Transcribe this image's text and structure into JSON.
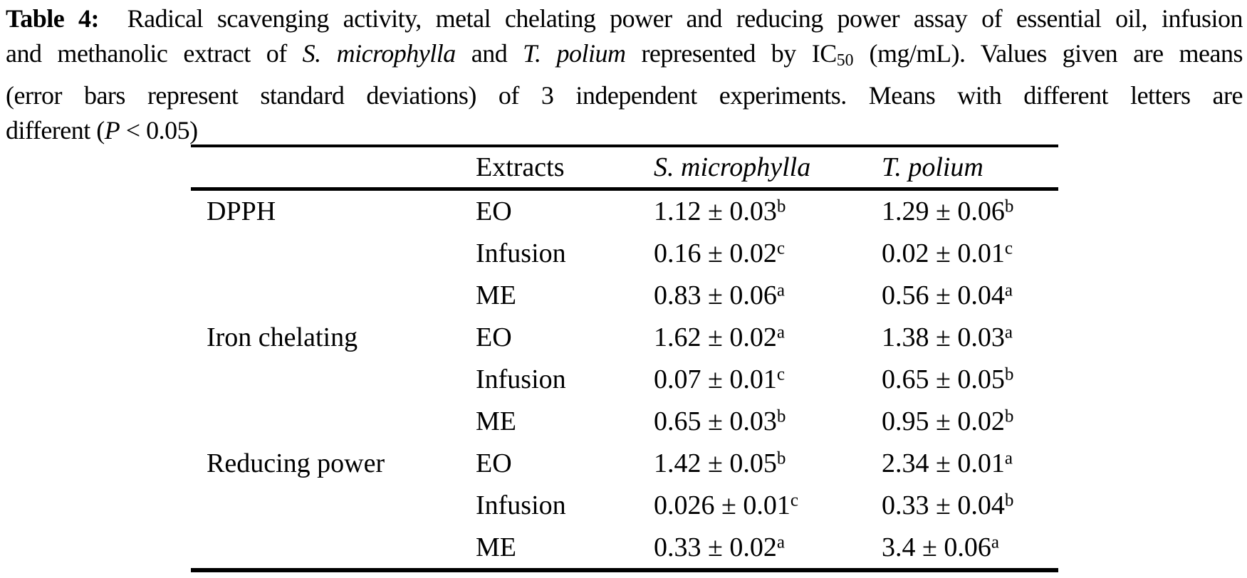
{
  "colors": {
    "text": "#000000",
    "background": "#ffffff"
  },
  "caption": {
    "lines": [
      {
        "justify": true,
        "segments": [
          {
            "text": "Table 4:",
            "style": "bold"
          },
          {
            "text": "  Radical scavenging activity, metal chelating power and reducing power assay of essential oil, infusion",
            "style": "normal"
          }
        ]
      },
      {
        "justify": true,
        "segments": [
          {
            "text": "and methanolic extract of ",
            "style": "normal"
          },
          {
            "text": "S. microphylla",
            "style": "italic"
          },
          {
            "text": " and ",
            "style": "normal"
          },
          {
            "text": "T. polium",
            "style": "italic"
          },
          {
            "text": " represented by IC",
            "style": "normal"
          },
          {
            "text": "50",
            "style": "sub"
          },
          {
            "text": " (mg/mL). Values given are means",
            "style": "normal"
          }
        ]
      },
      {
        "justify": true,
        "segments": [
          {
            "text": "(error bars represent standard deviations) of 3 independent experiments. Means with different letters are",
            "style": "normal"
          }
        ]
      },
      {
        "justify": false,
        "segments": [
          {
            "text": "different (",
            "style": "normal"
          },
          {
            "text": "P",
            "style": "italic"
          },
          {
            "text": " < 0.05)",
            "style": "normal"
          }
        ]
      }
    ]
  },
  "table": {
    "columns": [
      {
        "label": "",
        "italic": false
      },
      {
        "label": "Extracts",
        "italic": false
      },
      {
        "label": "S. microphylla",
        "italic": true
      },
      {
        "label": "T. polium",
        "italic": true
      }
    ],
    "rows": [
      {
        "assay": "DPPH",
        "extract": "EO",
        "s_microphylla": {
          "value": "1.12 ± 0.03",
          "sup": "b"
        },
        "t_polium": {
          "value": "1.29 ± 0.06",
          "sup": "b"
        }
      },
      {
        "assay": "",
        "extract": "Infusion",
        "s_microphylla": {
          "value": "0.16 ± 0.02",
          "sup": "c"
        },
        "t_polium": {
          "value": "0.02 ± 0.01",
          "sup": "c"
        }
      },
      {
        "assay": "",
        "extract": "ME",
        "s_microphylla": {
          "value": "0.83 ± 0.06",
          "sup": "a"
        },
        "t_polium": {
          "value": "0.56 ± 0.04",
          "sup": "a"
        }
      },
      {
        "assay": "Iron chelating",
        "extract": "EO",
        "s_microphylla": {
          "value": "1.62 ± 0.02",
          "sup": "a"
        },
        "t_polium": {
          "value": "1.38 ± 0.03",
          "sup": "a"
        }
      },
      {
        "assay": "",
        "extract": "Infusion",
        "s_microphylla": {
          "value": "0.07 ± 0.01",
          "sup": "c"
        },
        "t_polium": {
          "value": "0.65 ± 0.05",
          "sup": "b"
        }
      },
      {
        "assay": "",
        "extract": "ME",
        "s_microphylla": {
          "value": "0.65 ± 0.03",
          "sup": "b"
        },
        "t_polium": {
          "value": "0.95 ± 0.02",
          "sup": "b"
        }
      },
      {
        "assay": "Reducing power",
        "extract": "EO",
        "s_microphylla": {
          "value": "1.42 ± 0.05",
          "sup": "b"
        },
        "t_polium": {
          "value": "2.34 ± 0.01",
          "sup": "a"
        }
      },
      {
        "assay": "",
        "extract": "Infusion",
        "s_microphylla": {
          "value": "0.026 ± 0.01",
          "sup": "c"
        },
        "t_polium": {
          "value": "0.33 ± 0.04",
          "sup": "b"
        }
      },
      {
        "assay": "",
        "extract": "ME",
        "s_microphylla": {
          "value": "0.33 ± 0.02",
          "sup": "a"
        },
        "t_polium": {
          "value": "3.4 ± 0.06",
          "sup": "a"
        }
      }
    ]
  }
}
